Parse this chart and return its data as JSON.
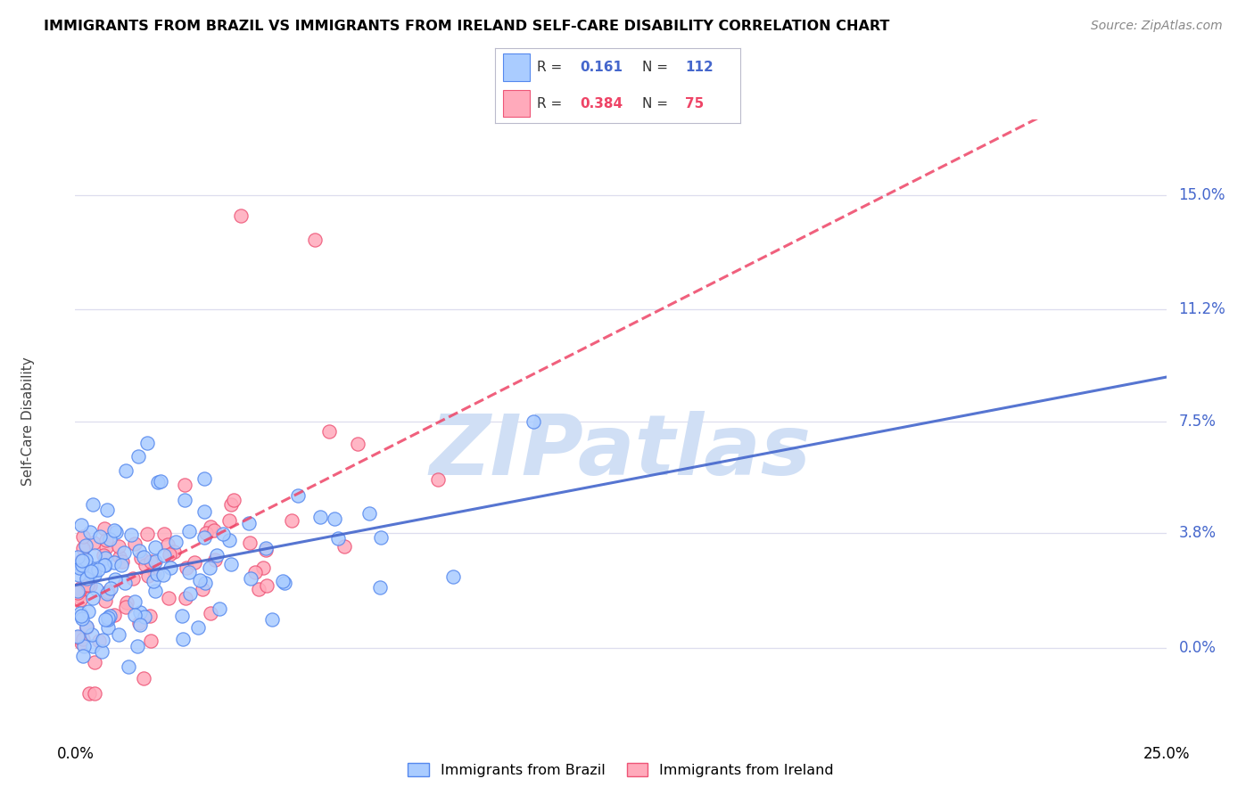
{
  "title": "IMMIGRANTS FROM BRAZIL VS IMMIGRANTS FROM IRELAND SELF-CARE DISABILITY CORRELATION CHART",
  "source": "Source: ZipAtlas.com",
  "ylabel": "Self-Care Disability",
  "ytick_values": [
    0.0,
    3.8,
    7.5,
    11.2,
    15.0
  ],
  "xlim": [
    0.0,
    25.0
  ],
  "ylim": [
    -2.5,
    17.5
  ],
  "brazil_color": "#aaccff",
  "brazil_edge": "#5588ee",
  "ireland_color": "#ffaabb",
  "ireland_edge": "#ee5577",
  "brazil_line_color": "#4466cc",
  "ireland_line_color": "#ee4466",
  "watermark_color": "#d0dff5",
  "grid_color": "#ddddee",
  "ytick_color": "#4466cc",
  "title_fontsize": 11.5,
  "source_fontsize": 10,
  "tick_fontsize": 12,
  "ylabel_fontsize": 11
}
